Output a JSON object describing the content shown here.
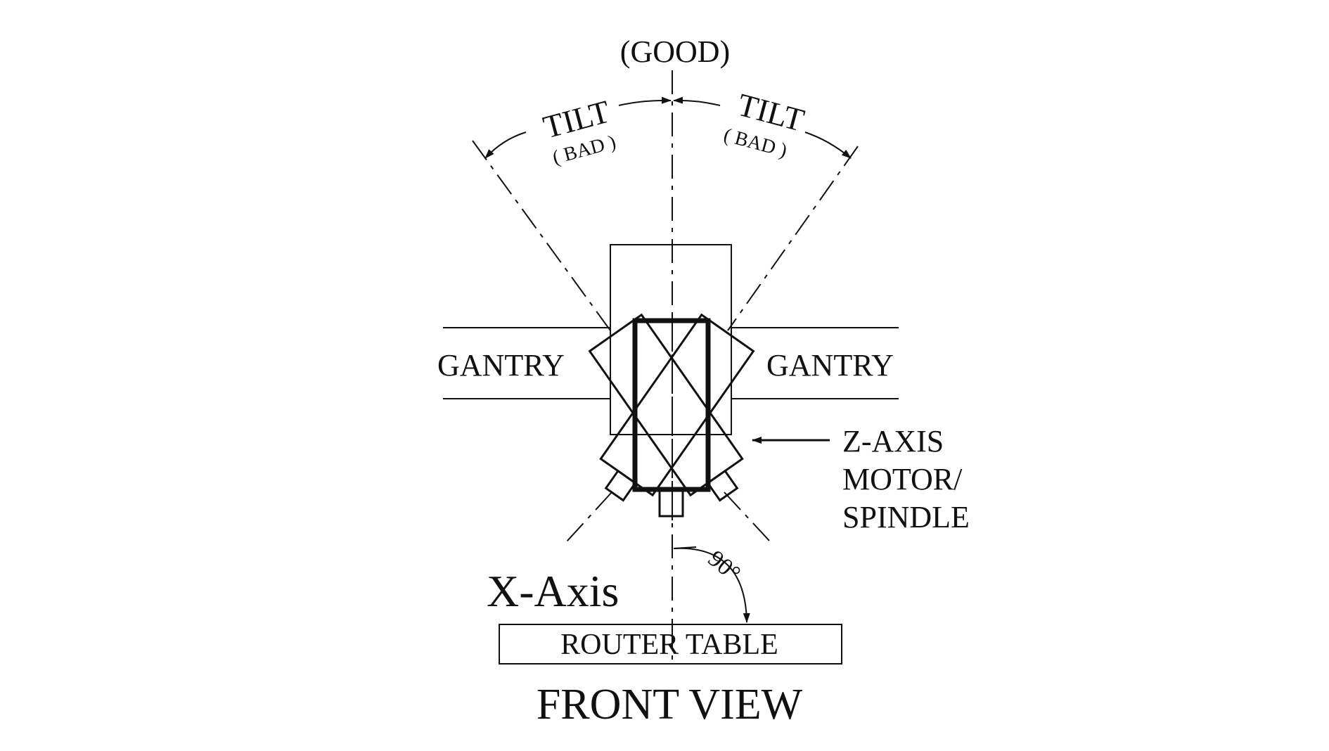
{
  "diagram": {
    "good_label": "(GOOD)",
    "tilt_left": {
      "label": "TILT",
      "sublabel": "( BAD )"
    },
    "tilt_right": {
      "label": "TILT",
      "sublabel": "( BAD )"
    },
    "gantry_left": "GANTRY",
    "gantry_right": "GANTRY",
    "motor_label": [
      "Z-AXIS",
      "MOTOR/",
      "SPINDLE"
    ],
    "angle_label": "90°",
    "axis_label": "X-Axis",
    "table_label": "ROUTER TABLE",
    "view_title": "FRONT VIEW",
    "colors": {
      "ink": "#111111",
      "background": "#ffffff"
    }
  }
}
